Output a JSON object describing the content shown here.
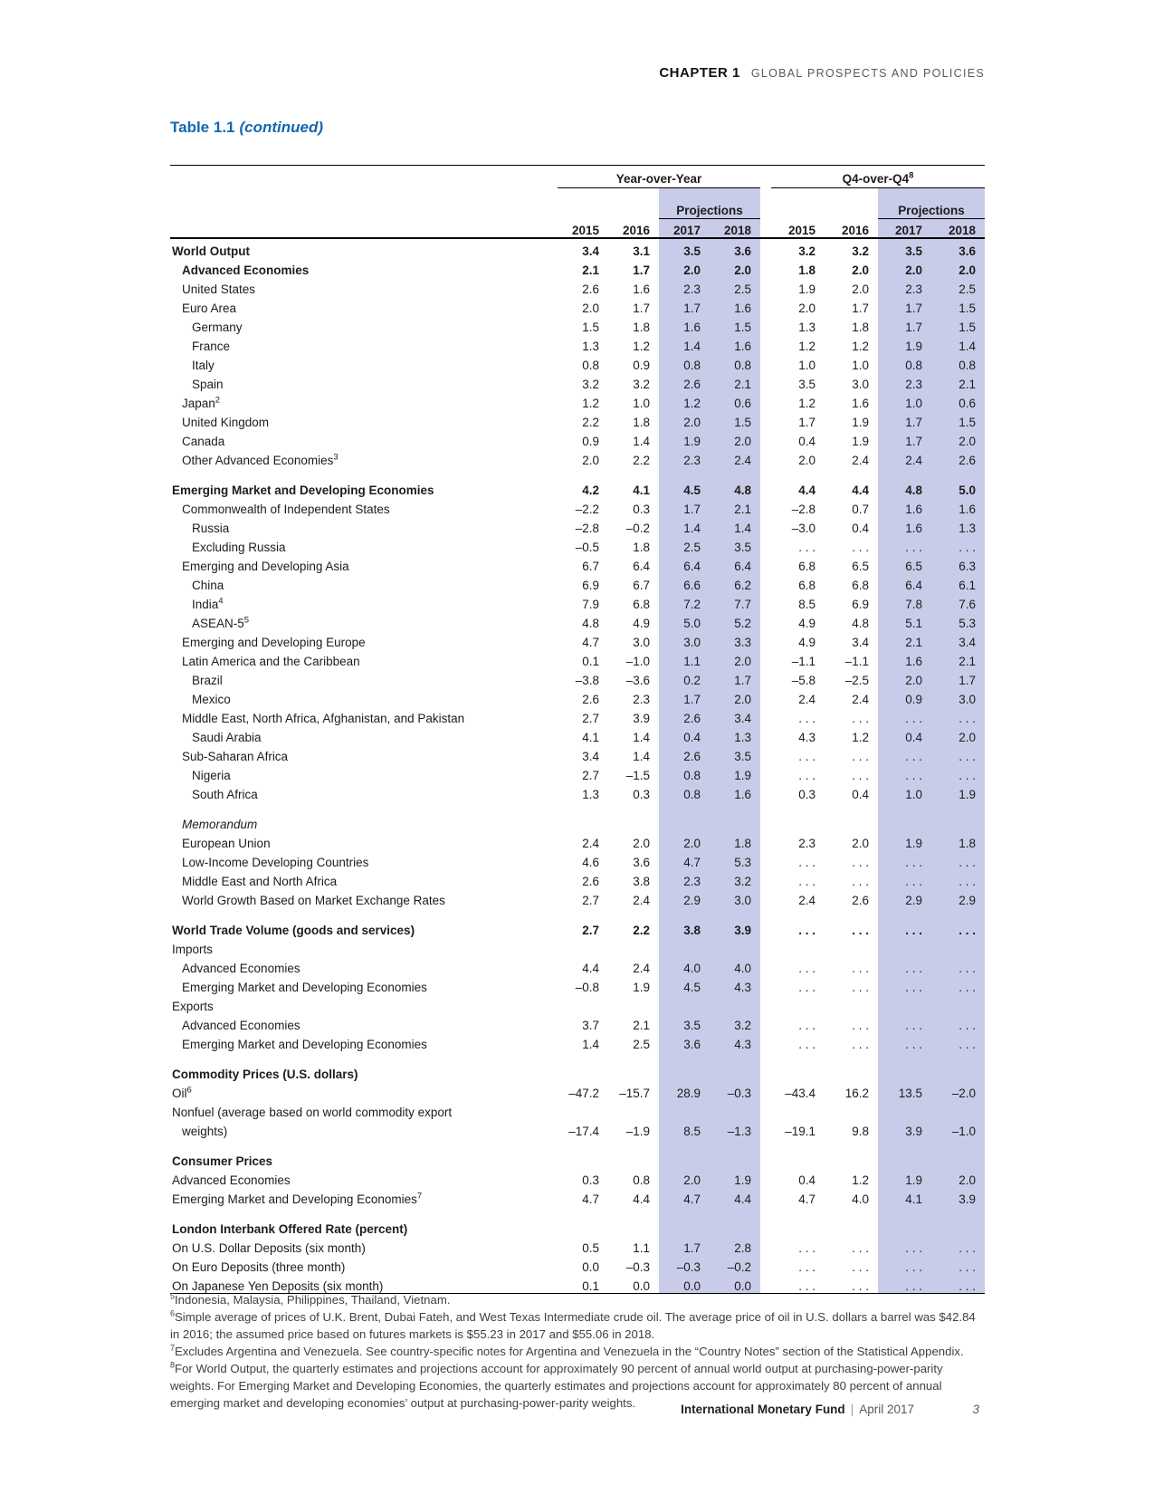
{
  "page": {
    "chapter_label": "CHAPTER 1",
    "chapter_title": "GLOBAL PROSPECTS AND POLICIES",
    "table_title": "Table 1.1",
    "table_title_suffix": "(continued)",
    "footer_publisher": "International Monetary Fund",
    "footer_separator": "|",
    "footer_date": "April 2017",
    "page_number": "3"
  },
  "colors": {
    "projection_shade": "#c9cce9",
    "title_blue": "#1567ae"
  },
  "table": {
    "group_headers": [
      {
        "label": "Year-over-Year",
        "sup": ""
      },
      {
        "label": "Q4-over-Q4",
        "sup": "8"
      }
    ],
    "projections_label": "Projections",
    "year_columns": [
      "2015",
      "2016",
      "2017",
      "2018",
      "2015",
      "2016",
      "2017",
      "2018"
    ],
    "rows": [
      {
        "label": "World Output",
        "sup": "",
        "indent": 0,
        "style": "bold",
        "values": [
          "3.4",
          "3.1",
          "3.5",
          "3.6",
          "3.2",
          "3.2",
          "3.5",
          "3.6"
        ]
      },
      {
        "label": "Advanced Economies",
        "sup": "",
        "indent": 1,
        "style": "bold",
        "values": [
          "2.1",
          "1.7",
          "2.0",
          "2.0",
          "1.8",
          "2.0",
          "2.0",
          "2.0"
        ]
      },
      {
        "label": "United States",
        "sup": "",
        "indent": 1,
        "style": "plain",
        "values": [
          "2.6",
          "1.6",
          "2.3",
          "2.5",
          "1.9",
          "2.0",
          "2.3",
          "2.5"
        ]
      },
      {
        "label": "Euro Area",
        "sup": "",
        "indent": 1,
        "style": "plain",
        "values": [
          "2.0",
          "1.7",
          "1.7",
          "1.6",
          "2.0",
          "1.7",
          "1.7",
          "1.5"
        ]
      },
      {
        "label": "Germany",
        "sup": "",
        "indent": 2,
        "style": "plain",
        "values": [
          "1.5",
          "1.8",
          "1.6",
          "1.5",
          "1.3",
          "1.8",
          "1.7",
          "1.5"
        ]
      },
      {
        "label": "France",
        "sup": "",
        "indent": 2,
        "style": "plain",
        "values": [
          "1.3",
          "1.2",
          "1.4",
          "1.6",
          "1.2",
          "1.2",
          "1.9",
          "1.4"
        ]
      },
      {
        "label": "Italy",
        "sup": "",
        "indent": 2,
        "style": "plain",
        "values": [
          "0.8",
          "0.9",
          "0.8",
          "0.8",
          "1.0",
          "1.0",
          "0.8",
          "0.8"
        ]
      },
      {
        "label": "Spain",
        "sup": "",
        "indent": 2,
        "style": "plain",
        "values": [
          "3.2",
          "3.2",
          "2.6",
          "2.1",
          "3.5",
          "3.0",
          "2.3",
          "2.1"
        ]
      },
      {
        "label": "Japan",
        "sup": "2",
        "indent": 1,
        "style": "plain",
        "values": [
          "1.2",
          "1.0",
          "1.2",
          "0.6",
          "1.2",
          "1.6",
          "1.0",
          "0.6"
        ]
      },
      {
        "label": "United Kingdom",
        "sup": "",
        "indent": 1,
        "style": "plain",
        "values": [
          "2.2",
          "1.8",
          "2.0",
          "1.5",
          "1.7",
          "1.9",
          "1.7",
          "1.5"
        ]
      },
      {
        "label": "Canada",
        "sup": "",
        "indent": 1,
        "style": "plain",
        "values": [
          "0.9",
          "1.4",
          "1.9",
          "2.0",
          "0.4",
          "1.9",
          "1.7",
          "2.0"
        ]
      },
      {
        "label": "Other Advanced Economies",
        "sup": "3",
        "indent": 1,
        "style": "plain",
        "values": [
          "2.0",
          "2.2",
          "2.3",
          "2.4",
          "2.0",
          "2.4",
          "2.4",
          "2.6"
        ]
      },
      {
        "style": "spacer"
      },
      {
        "label": "Emerging Market and Developing Economies",
        "sup": "",
        "indent": 0,
        "style": "bold",
        "values": [
          "4.2",
          "4.1",
          "4.5",
          "4.8",
          "4.4",
          "4.4",
          "4.8",
          "5.0"
        ]
      },
      {
        "label": "Commonwealth of Independent States",
        "sup": "",
        "indent": 1,
        "style": "plain",
        "values": [
          "–2.2",
          "0.3",
          "1.7",
          "2.1",
          "–2.8",
          "0.7",
          "1.6",
          "1.6"
        ]
      },
      {
        "label": "Russia",
        "sup": "",
        "indent": 2,
        "style": "plain",
        "values": [
          "–2.8",
          "–0.2",
          "1.4",
          "1.4",
          "–3.0",
          "0.4",
          "1.6",
          "1.3"
        ]
      },
      {
        "label": "Excluding Russia",
        "sup": "",
        "indent": 2,
        "style": "plain",
        "values": [
          "–0.5",
          "1.8",
          "2.5",
          "3.5",
          ". . .",
          ". . .",
          ". . .",
          ". . ."
        ]
      },
      {
        "label": "Emerging and Developing Asia",
        "sup": "",
        "indent": 1,
        "style": "plain",
        "values": [
          "6.7",
          "6.4",
          "6.4",
          "6.4",
          "6.8",
          "6.5",
          "6.5",
          "6.3"
        ]
      },
      {
        "label": "China",
        "sup": "",
        "indent": 2,
        "style": "plain",
        "values": [
          "6.9",
          "6.7",
          "6.6",
          "6.2",
          "6.8",
          "6.8",
          "6.4",
          "6.1"
        ]
      },
      {
        "label": "India",
        "sup": "4",
        "indent": 2,
        "style": "plain",
        "values": [
          "7.9",
          "6.8",
          "7.2",
          "7.7",
          "8.5",
          "6.9",
          "7.8",
          "7.6"
        ]
      },
      {
        "label": "ASEAN-5",
        "sup": "5",
        "indent": 2,
        "style": "plain",
        "values": [
          "4.8",
          "4.9",
          "5.0",
          "5.2",
          "4.9",
          "4.8",
          "5.1",
          "5.3"
        ]
      },
      {
        "label": "Emerging and Developing Europe",
        "sup": "",
        "indent": 1,
        "style": "plain",
        "values": [
          "4.7",
          "3.0",
          "3.0",
          "3.3",
          "4.9",
          "3.4",
          "2.1",
          "3.4"
        ]
      },
      {
        "label": "Latin America and the Caribbean",
        "sup": "",
        "indent": 1,
        "style": "plain",
        "values": [
          "0.1",
          "–1.0",
          "1.1",
          "2.0",
          "–1.1",
          "–1.1",
          "1.6",
          "2.1"
        ]
      },
      {
        "label": "Brazil",
        "sup": "",
        "indent": 2,
        "style": "plain",
        "values": [
          "–3.8",
          "–3.6",
          "0.2",
          "1.7",
          "–5.8",
          "–2.5",
          "2.0",
          "1.7"
        ]
      },
      {
        "label": "Mexico",
        "sup": "",
        "indent": 2,
        "style": "plain",
        "values": [
          "2.6",
          "2.3",
          "1.7",
          "2.0",
          "2.4",
          "2.4",
          "0.9",
          "3.0"
        ]
      },
      {
        "label": "Middle East, North Africa, Afghanistan, and Pakistan",
        "sup": "",
        "indent": 1,
        "style": "plain",
        "values": [
          "2.7",
          "3.9",
          "2.6",
          "3.4",
          ". . .",
          ". . .",
          ". . .",
          ". . ."
        ]
      },
      {
        "label": "Saudi Arabia",
        "sup": "",
        "indent": 2,
        "style": "plain",
        "values": [
          "4.1",
          "1.4",
          "0.4",
          "1.3",
          "4.3",
          "1.2",
          "0.4",
          "2.0"
        ]
      },
      {
        "label": "Sub-Saharan Africa",
        "sup": "",
        "indent": 1,
        "style": "plain",
        "values": [
          "3.4",
          "1.4",
          "2.6",
          "3.5",
          ". . .",
          ". . .",
          ". . .",
          ". . ."
        ]
      },
      {
        "label": "Nigeria",
        "sup": "",
        "indent": 2,
        "style": "plain",
        "values": [
          "2.7",
          "–1.5",
          "0.8",
          "1.9",
          ". . .",
          ". . .",
          ". . .",
          ". . ."
        ]
      },
      {
        "label": "South Africa",
        "sup": "",
        "indent": 2,
        "style": "plain",
        "values": [
          "1.3",
          "0.3",
          "0.8",
          "1.6",
          "0.3",
          "0.4",
          "1.0",
          "1.9"
        ]
      },
      {
        "style": "spacer"
      },
      {
        "label": "Memorandum",
        "sup": "",
        "indent": 1,
        "style": "italic",
        "values": null
      },
      {
        "label": "European Union",
        "sup": "",
        "indent": 1,
        "style": "plain",
        "values": [
          "2.4",
          "2.0",
          "2.0",
          "1.8",
          "2.3",
          "2.0",
          "1.9",
          "1.8"
        ]
      },
      {
        "label": "Low-Income Developing Countries",
        "sup": "",
        "indent": 1,
        "style": "plain",
        "values": [
          "4.6",
          "3.6",
          "4.7",
          "5.3",
          ". . .",
          ". . .",
          ". . .",
          ". . ."
        ]
      },
      {
        "label": "Middle East and North Africa",
        "sup": "",
        "indent": 1,
        "style": "plain",
        "values": [
          "2.6",
          "3.8",
          "2.3",
          "3.2",
          ". . .",
          ". . .",
          ". . .",
          ". . ."
        ]
      },
      {
        "label": "World Growth Based on Market Exchange Rates",
        "sup": "",
        "indent": 1,
        "style": "plain",
        "values": [
          "2.7",
          "2.4",
          "2.9",
          "3.0",
          "2.4",
          "2.6",
          "2.9",
          "2.9"
        ]
      },
      {
        "style": "spacer"
      },
      {
        "label": "World Trade Volume (goods and services)",
        "sup": "",
        "indent": 0,
        "style": "bold",
        "values": [
          "2.7",
          "2.2",
          "3.8",
          "3.9",
          ". . .",
          ". . .",
          ". . .",
          ". . ."
        ]
      },
      {
        "label": "Imports",
        "sup": "",
        "indent": 0,
        "style": "plain",
        "values": null
      },
      {
        "label": "Advanced Economies",
        "sup": "",
        "indent": 1,
        "style": "plain",
        "values": [
          "4.4",
          "2.4",
          "4.0",
          "4.0",
          ". . .",
          ". . .",
          ". . .",
          ". . ."
        ]
      },
      {
        "label": "Emerging Market and Developing Economies",
        "sup": "",
        "indent": 1,
        "style": "plain",
        "values": [
          "–0.8",
          "1.9",
          "4.5",
          "4.3",
          ". . .",
          ". . .",
          ". . .",
          ". . ."
        ]
      },
      {
        "label": "Exports",
        "sup": "",
        "indent": 0,
        "style": "plain",
        "values": null
      },
      {
        "label": "Advanced Economies",
        "sup": "",
        "indent": 1,
        "style": "plain",
        "values": [
          "3.7",
          "2.1",
          "3.5",
          "3.2",
          ". . .",
          ". . .",
          ". . .",
          ". . ."
        ]
      },
      {
        "label": "Emerging Market and Developing Economies",
        "sup": "",
        "indent": 1,
        "style": "plain",
        "values": [
          "1.4",
          "2.5",
          "3.6",
          "4.3",
          ". . .",
          ". . .",
          ". . .",
          ". . ."
        ]
      },
      {
        "style": "spacer"
      },
      {
        "label": "Commodity Prices (U.S. dollars)",
        "sup": "",
        "indent": 0,
        "style": "bold",
        "values": null
      },
      {
        "label": "Oil",
        "sup": "6",
        "indent": 0,
        "style": "plain",
        "values": [
          "–47.2",
          "–15.7",
          "28.9",
          "–0.3",
          "–43.4",
          "16.2",
          "13.5",
          "–2.0"
        ]
      },
      {
        "label": "Nonfuel (average based on world commodity export",
        "sup": "",
        "indent": 0,
        "style": "plain",
        "values": null
      },
      {
        "label": "weights)",
        "sup": "",
        "indent": 1,
        "style": "plain",
        "values": [
          "–17.4",
          "–1.9",
          "8.5",
          "–1.3",
          "–19.1",
          "9.8",
          "3.9",
          "–1.0"
        ]
      },
      {
        "style": "spacer"
      },
      {
        "label": "Consumer Prices",
        "sup": "",
        "indent": 0,
        "style": "bold",
        "values": null
      },
      {
        "label": "Advanced Economies",
        "sup": "",
        "indent": 0,
        "style": "plain",
        "values": [
          "0.3",
          "0.8",
          "2.0",
          "1.9",
          "0.4",
          "1.2",
          "1.9",
          "2.0"
        ]
      },
      {
        "label": "Emerging Market and Developing Economies",
        "sup": "7",
        "indent": 0,
        "style": "plain",
        "values": [
          "4.7",
          "4.4",
          "4.7",
          "4.4",
          "4.7",
          "4.0",
          "4.1",
          "3.9"
        ]
      },
      {
        "style": "spacer"
      },
      {
        "label": "London Interbank Offered Rate (percent)",
        "sup": "",
        "indent": 0,
        "style": "bold",
        "values": null
      },
      {
        "label": "On U.S. Dollar Deposits (six month)",
        "sup": "",
        "indent": 0,
        "style": "plain",
        "values": [
          "0.5",
          "1.1",
          "1.7",
          "2.8",
          ". . .",
          ". . .",
          ". . .",
          ". . ."
        ]
      },
      {
        "label": "On Euro Deposits (three month)",
        "sup": "",
        "indent": 0,
        "style": "plain",
        "values": [
          "0.0",
          "–0.3",
          "–0.3",
          "–0.2",
          ". . .",
          ". . .",
          ". . .",
          ". . ."
        ]
      },
      {
        "label": "On Japanese Yen Deposits (six month)",
        "sup": "",
        "indent": 0,
        "style": "plain",
        "values": [
          "0.1",
          "0.0",
          "0.0",
          "0.0",
          ". . .",
          ". . .",
          ". . .",
          ". . ."
        ]
      }
    ]
  },
  "footnotes": [
    {
      "sup": "5",
      "text": "Indonesia, Malaysia, Philippines, Thailand, Vietnam."
    },
    {
      "sup": "6",
      "text": "Simple average of prices of U.K. Brent, Dubai Fateh, and West Texas Intermediate crude oil. The average price of oil in U.S. dollars a barrel was $42.84 in 2016; the assumed price based on futures markets is $55.23 in 2017 and $55.06 in 2018."
    },
    {
      "sup": "7",
      "text": "Excludes Argentina and Venezuela. See country-specific notes for Argentina and Venezuela in the “Country Notes” section of the Statistical Appendix."
    },
    {
      "sup": "8",
      "text": "For World Output, the quarterly estimates and projections account for approximately 90 percent of annual world output at purchasing-power-parity weights. For Emerging Market and Developing Economies, the quarterly estimates and projections account for approximately 80 percent of annual emerging market and developing economies’ output at purchasing-power-parity weights."
    }
  ]
}
